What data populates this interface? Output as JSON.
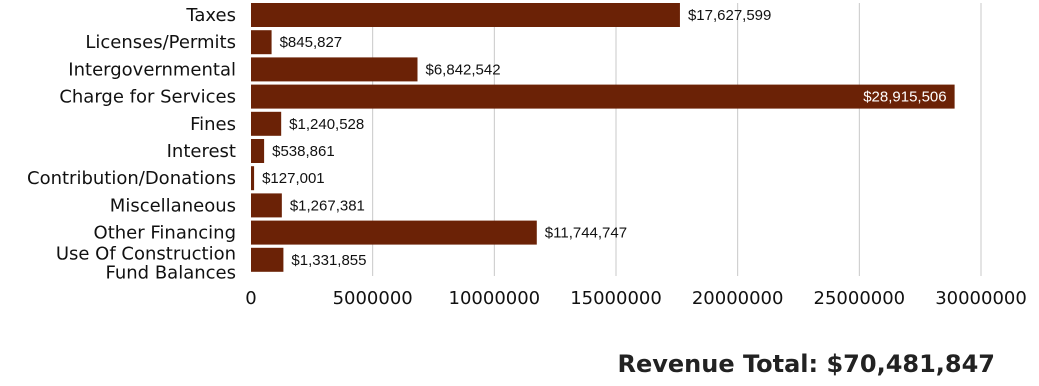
{
  "chart_data": {
    "type": "bar",
    "orientation": "horizontal",
    "categories": [
      "Taxes",
      "Licenses/Permits",
      "Intergovernmental",
      "Charge for Services",
      "Fines",
      "Interest",
      "Contribution/Donations",
      "Miscellaneous",
      "Other Financing",
      "Use Of Construction Fund Balances"
    ],
    "category_lines": [
      [
        "Taxes"
      ],
      [
        "Licenses/Permits"
      ],
      [
        "Intergovernmental"
      ],
      [
        "Charge for Services"
      ],
      [
        "Fines"
      ],
      [
        "Interest"
      ],
      [
        "Contribution/Donations"
      ],
      [
        "Miscellaneous"
      ],
      [
        "Other Financing"
      ],
      [
        "Use Of Construction",
        "Fund Balances"
      ]
    ],
    "values": [
      17627599,
      845827,
      6842542,
      28915506,
      1240528,
      538861,
      127001,
      1267381,
      11744747,
      1331855
    ],
    "data_labels": [
      "$17,627,599",
      "$845,827",
      "$6,842,542",
      "$28,915,506",
      "$1,240,528",
      "$538,861",
      "$127,001",
      "$1,267,381",
      "$11,744,747",
      "$1,331,855"
    ],
    "xticks": [
      "0",
      "5000000",
      "10000000",
      "15000000",
      "20000000",
      "25000000",
      "30000000"
    ],
    "xlim": [
      0,
      30000000
    ],
    "title": "",
    "xlabel": "",
    "ylabel": "",
    "grid": "vertical",
    "legend": "none",
    "bar_color": "#6b2206",
    "grid_color": "#c8c8c8"
  },
  "footer": {
    "total_label": "Revenue Total: $70,481,847"
  }
}
